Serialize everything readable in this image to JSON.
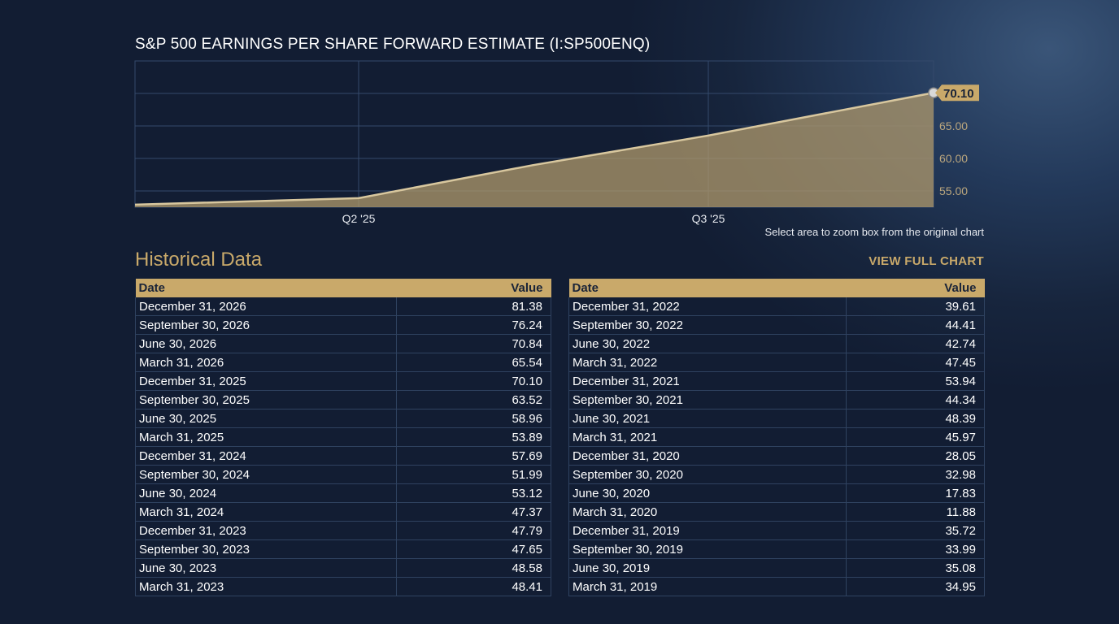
{
  "chart_data": {
    "type": "area",
    "title": "S&P 500 EARNINGS PER SHARE FORWARD ESTIMATE (I:SP500ENQ)",
    "x": [
      "Mar 2025",
      "Jun 2025",
      "Sep 2025",
      "Dec 2025"
    ],
    "values": [
      53.89,
      58.96,
      63.52,
      70.1
    ],
    "x_ticks": [
      "Q2 '25",
      "Q3 '25"
    ],
    "y_ticks": [
      "55.00",
      "60.00",
      "65.00"
    ],
    "ylim": [
      52.5,
      75.0
    ],
    "last_value_label": "70.10",
    "grid": true,
    "fill_color": "#b09a6c",
    "line_color": "#d8c79e"
  },
  "zoom_hint": "Select area to zoom box from the original chart",
  "historical": {
    "title": "Historical Data",
    "view_full_label": "VIEW FULL CHART",
    "header_date": "Date",
    "header_value": "Value",
    "left_rows": [
      {
        "date": "December 31, 2026",
        "value": "81.38"
      },
      {
        "date": "September 30, 2026",
        "value": "76.24"
      },
      {
        "date": "June 30, 2026",
        "value": "70.84"
      },
      {
        "date": "March 31, 2026",
        "value": "65.54"
      },
      {
        "date": "December 31, 2025",
        "value": "70.10"
      },
      {
        "date": "September 30, 2025",
        "value": "63.52"
      },
      {
        "date": "June 30, 2025",
        "value": "58.96"
      },
      {
        "date": "March 31, 2025",
        "value": "53.89"
      },
      {
        "date": "December 31, 2024",
        "value": "57.69"
      },
      {
        "date": "September 30, 2024",
        "value": "51.99"
      },
      {
        "date": "June 30, 2024",
        "value": "53.12"
      },
      {
        "date": "March 31, 2024",
        "value": "47.37"
      },
      {
        "date": "December 31, 2023",
        "value": "47.79"
      },
      {
        "date": "September 30, 2023",
        "value": "47.65"
      },
      {
        "date": "June 30, 2023",
        "value": "48.58"
      },
      {
        "date": "March 31, 2023",
        "value": "48.41"
      }
    ],
    "right_rows": [
      {
        "date": "December 31, 2022",
        "value": "39.61"
      },
      {
        "date": "September 30, 2022",
        "value": "44.41"
      },
      {
        "date": "June 30, 2022",
        "value": "42.74"
      },
      {
        "date": "March 31, 2022",
        "value": "47.45"
      },
      {
        "date": "December 31, 2021",
        "value": "53.94"
      },
      {
        "date": "September 30, 2021",
        "value": "44.34"
      },
      {
        "date": "June 30, 2021",
        "value": "48.39"
      },
      {
        "date": "March 31, 2021",
        "value": "45.97"
      },
      {
        "date": "December 31, 2020",
        "value": "28.05"
      },
      {
        "date": "September 30, 2020",
        "value": "32.98"
      },
      {
        "date": "June 30, 2020",
        "value": "17.83"
      },
      {
        "date": "March 31, 2020",
        "value": "11.88"
      },
      {
        "date": "December 31, 2019",
        "value": "35.72"
      },
      {
        "date": "September 30, 2019",
        "value": "33.99"
      },
      {
        "date": "June 30, 2019",
        "value": "35.08"
      },
      {
        "date": "March 31, 2019",
        "value": "34.95"
      }
    ]
  }
}
